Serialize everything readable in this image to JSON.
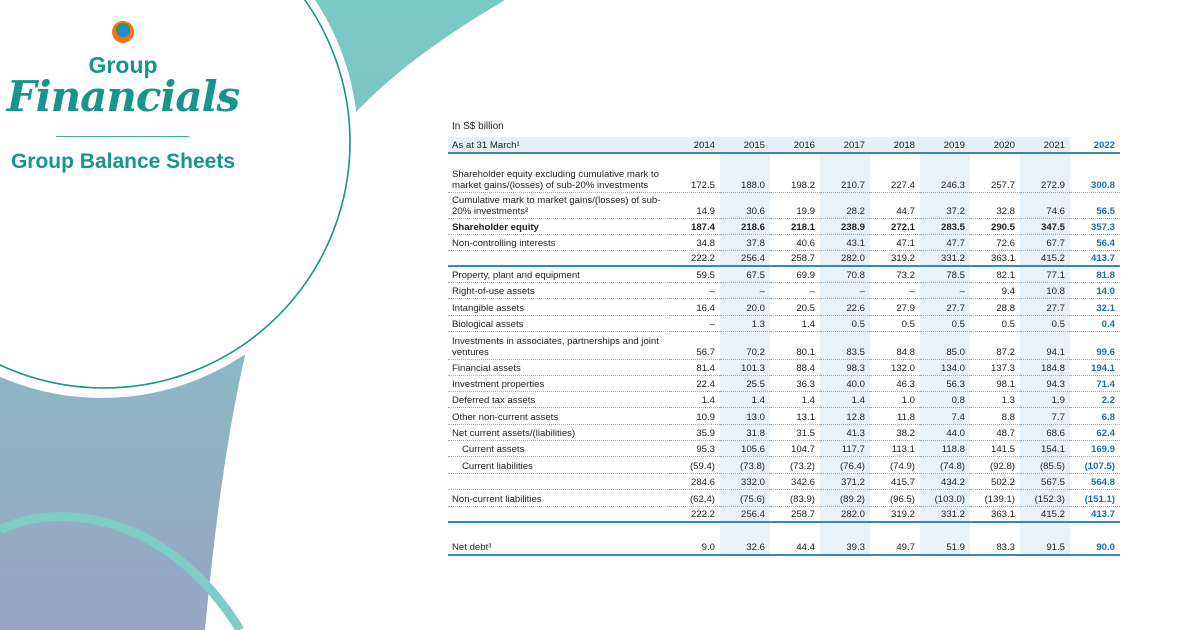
{
  "brand": {
    "line1": "Group",
    "line2": "Financials",
    "subtitle": "Group Balance Sheets"
  },
  "colors": {
    "teal": "#17958a",
    "accent_blue": "#1d6fb0"
  },
  "table": {
    "unit": "In S$ billion",
    "header_label": "As at 31 March¹",
    "years": [
      "2014",
      "2015",
      "2016",
      "2017",
      "2018",
      "2019",
      "2020",
      "2021",
      "2022"
    ],
    "rows": [
      {
        "label": "Shareholder equity excluding cumulative mark to market gains/(losses) of sub-20% investments",
        "values": [
          "172.5",
          "188.0",
          "198.2",
          "210.7",
          "227.4",
          "246.3",
          "257.7",
          "272.9",
          "300.8"
        ]
      },
      {
        "label": "Cumulative mark to market gains/(losses) of sub-20% investments²",
        "values": [
          "14.9",
          "30.6",
          "19.9",
          "28.2",
          "44.7",
          "37.2",
          "32.8",
          "74.6",
          "56.5"
        ]
      },
      {
        "label": "Shareholder equity",
        "style": "bold",
        "values": [
          "187.4",
          "218.6",
          "218.1",
          "238.9",
          "272.1",
          "283.5",
          "290.5",
          "347.5",
          "357.3"
        ]
      },
      {
        "label": "Non-controlling interests",
        "values": [
          "34.8",
          "37.8",
          "40.6",
          "43.1",
          "47.1",
          "47.7",
          "72.6",
          "67.7",
          "56.4"
        ]
      },
      {
        "label": "",
        "style": "total",
        "values": [
          "222.2",
          "256.4",
          "258.7",
          "282.0",
          "319.2",
          "331.2",
          "363.1",
          "415.2",
          "413.7"
        ]
      },
      {
        "label": "Property, plant and equipment",
        "values": [
          "59.5",
          "67.5",
          "69.9",
          "70.8",
          "73.2",
          "78.5",
          "82.1",
          "77.1",
          "81.8"
        ]
      },
      {
        "label": "Right-of-use assets",
        "values": [
          "–",
          "–",
          "–",
          "–",
          "–",
          "–",
          "9.4",
          "10.8",
          "14.0"
        ]
      },
      {
        "label": "Intangible assets",
        "values": [
          "16.4",
          "20.0",
          "20.5",
          "22.6",
          "27.9",
          "27.7",
          "28.8",
          "27.7",
          "32.1"
        ]
      },
      {
        "label": "Biological assets",
        "values": [
          "–",
          "1.3",
          "1.4",
          "0.5",
          "0.5",
          "0.5",
          "0.5",
          "0.5",
          "0.4"
        ]
      },
      {
        "label": "Investments in associates, partnerships and joint ventures",
        "values": [
          "56.7",
          "70.2",
          "80.1",
          "83.5",
          "84.8",
          "85.0",
          "87.2",
          "94.1",
          "99.6"
        ]
      },
      {
        "label": "Financial assets",
        "values": [
          "81.4",
          "101.3",
          "88.4",
          "98.3",
          "132.0",
          "134.0",
          "137.3",
          "184.8",
          "194.1"
        ]
      },
      {
        "label": "Investment properties",
        "values": [
          "22.4",
          "25.5",
          "36.3",
          "40.0",
          "46.3",
          "56.3",
          "98.1",
          "94.3",
          "71.4"
        ]
      },
      {
        "label": "Deferred tax assets",
        "values": [
          "1.4",
          "1.4",
          "1.4",
          "1.4",
          "1.0",
          "0.8",
          "1.3",
          "1.9",
          "2.2"
        ]
      },
      {
        "label": "Other non-current assets",
        "values": [
          "10.9",
          "13.0",
          "13.1",
          "12.8",
          "11.8",
          "7.4",
          "8.8",
          "7.7",
          "6.8"
        ]
      },
      {
        "label": "Net current assets/(liabilities)",
        "values": [
          "35.9",
          "31.8",
          "31.5",
          "41.3",
          "38.2",
          "44.0",
          "48.7",
          "68.6",
          "62.4"
        ]
      },
      {
        "label": "Current assets",
        "style": "indent",
        "values": [
          "95.3",
          "105.6",
          "104.7",
          "117.7",
          "113.1",
          "118.8",
          "141.5",
          "154.1",
          "169.9"
        ]
      },
      {
        "label": "Current liabilities",
        "style": "indent",
        "values": [
          "(59.4)",
          "(73.8)",
          "(73.2)",
          "(76.4)",
          "(74.9)",
          "(74.8)",
          "(92.8)",
          "(85.5)",
          "(107.5)"
        ]
      },
      {
        "label": "",
        "values": [
          "284.6",
          "332.0",
          "342.6",
          "371.2",
          "415.7",
          "434.2",
          "502.2",
          "567.5",
          "564.8"
        ]
      },
      {
        "label": "Non-current liabilities",
        "values": [
          "(62.4)",
          "(75.6)",
          "(83.9)",
          "(89.2)",
          "(96.5)",
          "(103.0)",
          "(139.1)",
          "(152.3)",
          "(151.1)"
        ]
      },
      {
        "label": "",
        "style": "total",
        "values": [
          "222.2",
          "256.4",
          "258.7",
          "282.0",
          "319.2",
          "331.2",
          "363.1",
          "415.2",
          "413.7"
        ]
      },
      {
        "label": "Net debt³",
        "style": "total",
        "values": [
          "9.0",
          "32.6",
          "44.4",
          "39.3",
          "49.7",
          "51.9",
          "83.3",
          "91.5",
          "90.0"
        ]
      }
    ]
  }
}
